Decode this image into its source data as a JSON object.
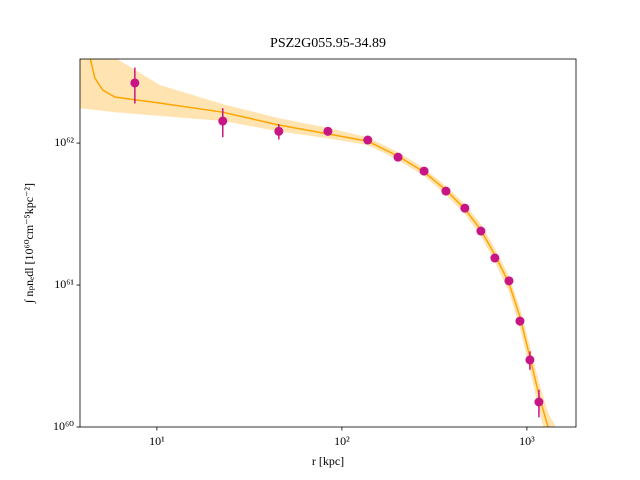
{
  "chart_data": {
    "type": "scatter",
    "title": "PSZ2G055.95-34.89",
    "xlabel": "r [kpc]",
    "ylabel": "∫ nₚnₑdl [10⁶⁰cm⁻⁵kpc⁻²]",
    "xscale": "log",
    "yscale": "log",
    "xlim": [
      3.84,
      1842
    ],
    "ylim": [
      1e+60,
      3.91e+62
    ],
    "xticks": [
      {
        "value": 10,
        "label": "10¹"
      },
      {
        "value": 100,
        "label": "10²"
      },
      {
        "value": 1000,
        "label": "10³"
      }
    ],
    "yticks": [
      {
        "value": 1e+60,
        "label": "10⁶⁰"
      },
      {
        "value": 1e+61,
        "label": "10⁶¹"
      },
      {
        "value": 1e+62,
        "label": "10⁶²"
      }
    ],
    "band": {
      "color": "#ffa500",
      "x": [
        3.84,
        5.93,
        10.4,
        22.7,
        45.6,
        84,
        138,
        201,
        278,
        365,
        462,
        564,
        671,
        800,
        917,
        1038,
        1161,
        1300,
        1436
      ],
      "upper": [
        4e+62,
        4e+62,
        2.56e+62,
        1.88e+62,
        1.5e+62,
        1.28e+62,
        1.1e+62,
        8.64e+61,
        6.67e+61,
        4.98e+61,
        3.72e+61,
        2.69e+61,
        1.82e+61,
        1.16e+61,
        6.88e+60,
        3.72e+60,
        2.07e+60,
        1.26e+60,
        1e+60
      ],
      "lower": [
        1.76e+62,
        1.65e+62,
        1.55e+62,
        1.43e+62,
        1.21e+62,
        1.08e+62,
        9.68e+61,
        7.58e+61,
        5.86e+61,
        4.31e+61,
        3.16e+61,
        2.21e+61,
        1.45e+61,
        8.93e+60,
        4.98e+60,
        2.52e+60,
        1.32e+60,
        7.5e+59,
        5e+59
      ]
    },
    "line": {
      "color": "#ffa500",
      "x": [
        4.35,
        4.62,
        5.1,
        5.93,
        10.4,
        22.7,
        45.6,
        84,
        138,
        201,
        278,
        365,
        462,
        564,
        671,
        800,
        917,
        1038,
        1161,
        1300
      ],
      "values": [
        4e+62,
        2.87e+62,
        2.36e+62,
        2.11e+62,
        1.91e+62,
        1.65e+62,
        1.34e+62,
        1.16e+62,
        1.03e+62,
        8.09e+61,
        6.25e+61,
        4.67e+61,
        3.43e+61,
        2.44e+61,
        1.63e+61,
        1.03e+61,
        5.96e+60,
        3.11e+60,
        1.68e+60,
        1e+60
      ]
    },
    "points": {
      "color": "#c71585",
      "x": [
        7.6,
        22.7,
        45.6,
        84,
        138,
        201,
        278,
        365,
        462,
        564,
        671,
        800,
        917,
        1038,
        1161
      ],
      "values": [
        2.65e+62,
        1.43e+62,
        1.21e+62,
        1.21e+62,
        1.05e+62,
        7.96e+61,
        6.35e+61,
        4.59e+61,
        3.48e+61,
        2.4e+61,
        1.55e+61,
        1.07e+61,
        5.57e+60,
        2.97e+60,
        1.5e+60
      ],
      "errors": [
        7.5e+61,
        3.3e+61,
        1.5e+61,
        5e+60,
        4e+60,
        3e+60,
        2e+60,
        1.5e+60,
        1.2e+60,
        1e+60,
        8e+59,
        6e+59,
        4e+59,
        4.4e+59,
        3.3e+59
      ]
    }
  }
}
